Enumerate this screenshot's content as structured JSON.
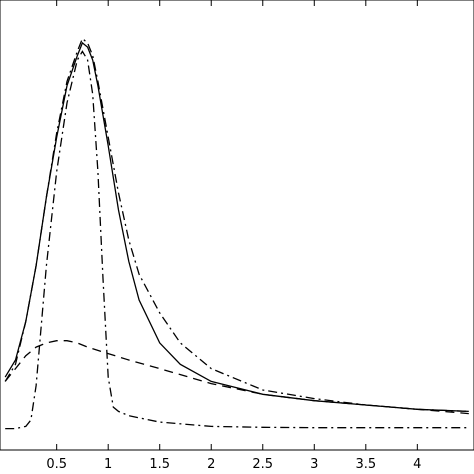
{
  "chart_data": {
    "type": "line",
    "title": "",
    "xlabel": "",
    "ylabel": "",
    "xlim": [
      -0.05,
      4.55
    ],
    "ylim": [
      -0.05,
      1.0
    ],
    "x_ticks": [
      0.5,
      1,
      1.5,
      2,
      2.5,
      3,
      3.5,
      4
    ],
    "x_tick_labels": [
      "0.5",
      "1",
      "1.5",
      "2",
      "2.5",
      "3",
      "3.5",
      "4"
    ],
    "grid": false,
    "series": [
      {
        "style": "solid",
        "x": [
          0,
          0.1,
          0.2,
          0.3,
          0.4,
          0.5,
          0.6,
          0.7,
          0.75,
          0.8,
          0.85,
          0.9,
          1.0,
          1.1,
          1.2,
          1.3,
          1.5,
          1.7,
          2.0,
          2.5,
          3.0,
          3.5,
          4.0,
          4.5
        ],
        "y": [
          0.12,
          0.16,
          0.25,
          0.38,
          0.54,
          0.68,
          0.8,
          0.87,
          0.9,
          0.89,
          0.86,
          0.8,
          0.66,
          0.51,
          0.39,
          0.3,
          0.2,
          0.15,
          0.11,
          0.08,
          0.065,
          0.055,
          0.045,
          0.04
        ]
      },
      {
        "style": "dashed",
        "x": [
          0,
          0.1,
          0.2,
          0.3,
          0.4,
          0.5,
          0.6,
          0.7,
          0.8,
          1.0,
          1.2,
          1.5,
          2.0,
          2.5,
          3.0,
          3.5,
          4.0,
          4.5
        ],
        "y": [
          0.11,
          0.14,
          0.17,
          0.19,
          0.2,
          0.205,
          0.205,
          0.2,
          0.19,
          0.175,
          0.16,
          0.14,
          0.105,
          0.08,
          0.065,
          0.055,
          0.045,
          0.035
        ]
      },
      {
        "style": "dash-dot",
        "x": [
          0,
          0.1,
          0.2,
          0.3,
          0.4,
          0.5,
          0.6,
          0.7,
          0.75,
          0.8,
          0.85,
          0.9,
          1.0,
          1.1,
          1.2,
          1.3,
          1.5,
          1.7,
          2.0,
          2.5,
          3.0,
          3.5,
          4.0,
          4.5
        ],
        "y": [
          0.11,
          0.15,
          0.25,
          0.38,
          0.54,
          0.69,
          0.81,
          0.88,
          0.91,
          0.9,
          0.87,
          0.81,
          0.68,
          0.55,
          0.44,
          0.36,
          0.27,
          0.2,
          0.14,
          0.09,
          0.07,
          0.055,
          0.045,
          0.04
        ]
      },
      {
        "style": "dash-dot",
        "x": [
          0,
          0.1,
          0.2,
          0.25,
          0.3,
          0.4,
          0.5,
          0.6,
          0.7,
          0.75,
          0.8,
          0.85,
          0.9,
          0.95,
          1.0,
          1.05,
          1.1,
          1.2,
          1.5,
          2.0,
          2.5,
          3.0,
          3.5,
          4.0,
          4.5
        ],
        "y": [
          0.0,
          0.0,
          0.005,
          0.02,
          0.1,
          0.38,
          0.6,
          0.76,
          0.86,
          0.88,
          0.86,
          0.78,
          0.6,
          0.35,
          0.12,
          0.05,
          0.04,
          0.03,
          0.015,
          0.005,
          0.003,
          0.002,
          0.002,
          0.002,
          0.002
        ]
      }
    ]
  }
}
